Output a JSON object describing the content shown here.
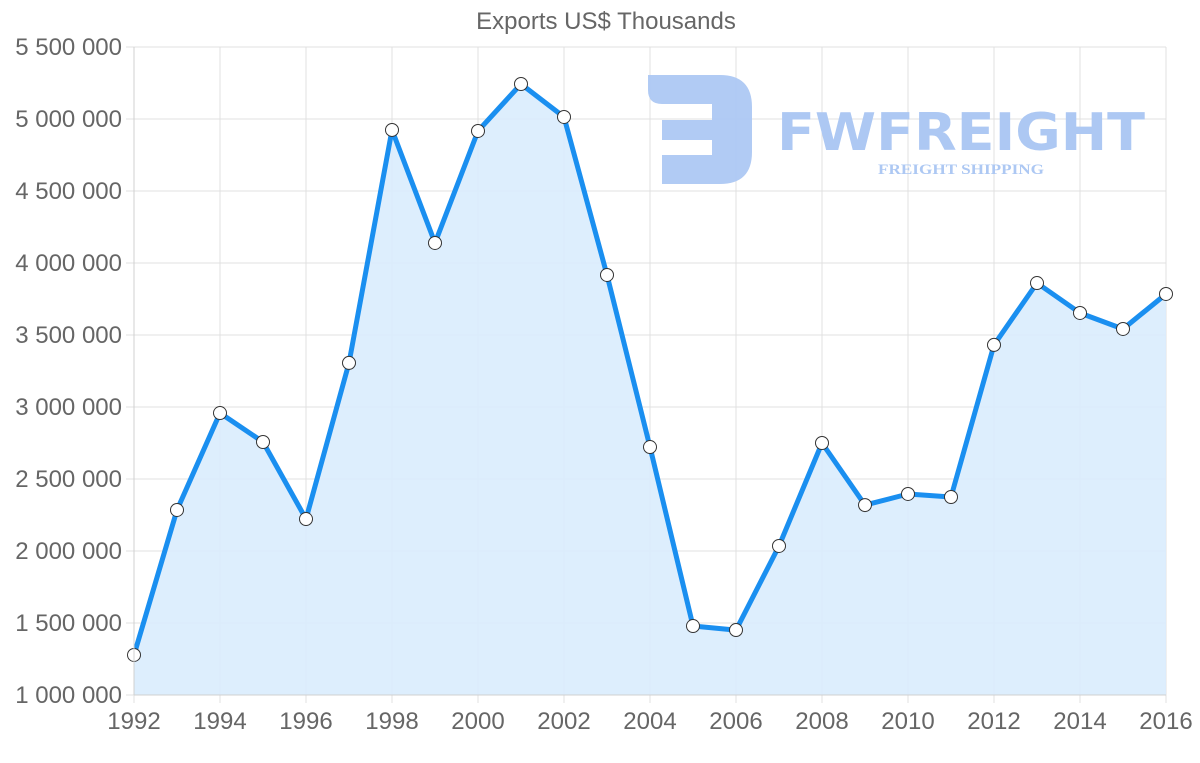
{
  "chart_data": {
    "type": "area",
    "title": "Exports US$ Thousands",
    "xlabel": "",
    "ylabel": "",
    "x": [
      1992,
      1993,
      1994,
      1995,
      1996,
      1997,
      1998,
      1999,
      2000,
      2001,
      2002,
      2003,
      2004,
      2005,
      2006,
      2007,
      2008,
      2009,
      2010,
      2011,
      2012,
      2013,
      2014,
      2015,
      2016
    ],
    "series": [
      {
        "name": "Exports US$ Thousands",
        "values": [
          1278000,
          2285000,
          2958000,
          2757000,
          2222000,
          3306000,
          4924000,
          4139000,
          4917000,
          5243000,
          5014000,
          3917000,
          2722000,
          1479000,
          1451000,
          2035000,
          2750000,
          2319000,
          2396000,
          2375000,
          3431000,
          3861000,
          3653000,
          3542000,
          3785000
        ]
      }
    ],
    "ylim": [
      1000000,
      5500000
    ],
    "yticks": [
      1000000,
      1500000,
      2000000,
      2500000,
      3000000,
      3500000,
      4000000,
      4500000,
      5000000,
      5500000
    ],
    "ytick_labels": [
      "1 000 000",
      "1 500 000",
      "2 000 000",
      "2 500 000",
      "3 000 000",
      "3 500 000",
      "4 000 000",
      "4 500 000",
      "5 000 000",
      "5 500 000"
    ],
    "xticks": [
      1992,
      1994,
      1996,
      1998,
      2000,
      2002,
      2004,
      2006,
      2008,
      2010,
      2012,
      2014,
      2016
    ],
    "xtick_labels": [
      "1992",
      "1994",
      "1996",
      "1998",
      "2000",
      "2002",
      "2004",
      "2006",
      "2008",
      "2010",
      "2012",
      "2014",
      "2016"
    ],
    "grid": true,
    "legend": "none",
    "colors": {
      "line": "#1a8ff0",
      "fill": "#d9ecfd",
      "grid": "#e0e0e0",
      "marker_fill": "#ffffff",
      "marker_stroke": "#333333"
    }
  },
  "watermark": {
    "brand": "FWFREIGHT",
    "tagline": "FREIGHT SHIPPING",
    "color": "#adc8f3"
  }
}
